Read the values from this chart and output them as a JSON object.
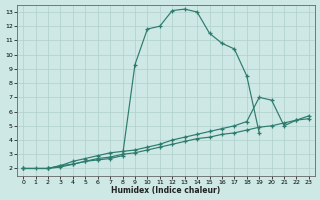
{
  "xlabel": "Humidex (Indice chaleur)",
  "ylabel": "",
  "bg_color": "#cde8e5",
  "line_color": "#2d7b6e",
  "grid_color": "#afd0cc",
  "xlim": [
    -0.5,
    23.5
  ],
  "ylim": [
    1.5,
    13.5
  ],
  "xticks": [
    0,
    1,
    2,
    3,
    4,
    5,
    6,
    7,
    8,
    9,
    10,
    11,
    12,
    13,
    14,
    15,
    16,
    17,
    18,
    19,
    20,
    21,
    22,
    23
  ],
  "yticks": [
    2,
    3,
    4,
    5,
    6,
    7,
    8,
    9,
    10,
    11,
    12,
    13
  ],
  "curve1_x": [
    0,
    1,
    2,
    3,
    4,
    5,
    6,
    7,
    8,
    9,
    10,
    11,
    12,
    13,
    14,
    15,
    16,
    17,
    18,
    19
  ],
  "curve1_y": [
    2.0,
    2.0,
    2.0,
    2.2,
    2.3,
    2.5,
    2.6,
    2.7,
    2.9,
    9.3,
    11.8,
    12.0,
    13.1,
    13.2,
    13.0,
    11.5,
    10.8,
    10.4,
    8.5,
    4.5
  ],
  "curve2_x": [
    0,
    2,
    3,
    4,
    5,
    6,
    7,
    8,
    9,
    10,
    11,
    12,
    13,
    14,
    15,
    16,
    17,
    18,
    19,
    20,
    21,
    22,
    23
  ],
  "curve2_y": [
    2.0,
    2.0,
    2.2,
    2.5,
    2.7,
    2.9,
    3.1,
    3.2,
    3.3,
    3.5,
    3.7,
    4.0,
    4.2,
    4.4,
    4.6,
    4.8,
    5.0,
    5.3,
    7.0,
    6.8,
    5.0,
    5.4,
    5.7
  ],
  "curve3_x": [
    0,
    2,
    3,
    4,
    5,
    6,
    7,
    8,
    9,
    10,
    11,
    12,
    13,
    14,
    15,
    16,
    17,
    18,
    19,
    20,
    21,
    22,
    23
  ],
  "curve3_y": [
    2.0,
    2.0,
    2.1,
    2.3,
    2.5,
    2.7,
    2.8,
    3.0,
    3.1,
    3.3,
    3.5,
    3.7,
    3.9,
    4.1,
    4.2,
    4.4,
    4.5,
    4.7,
    4.9,
    5.0,
    5.2,
    5.4,
    5.5
  ]
}
